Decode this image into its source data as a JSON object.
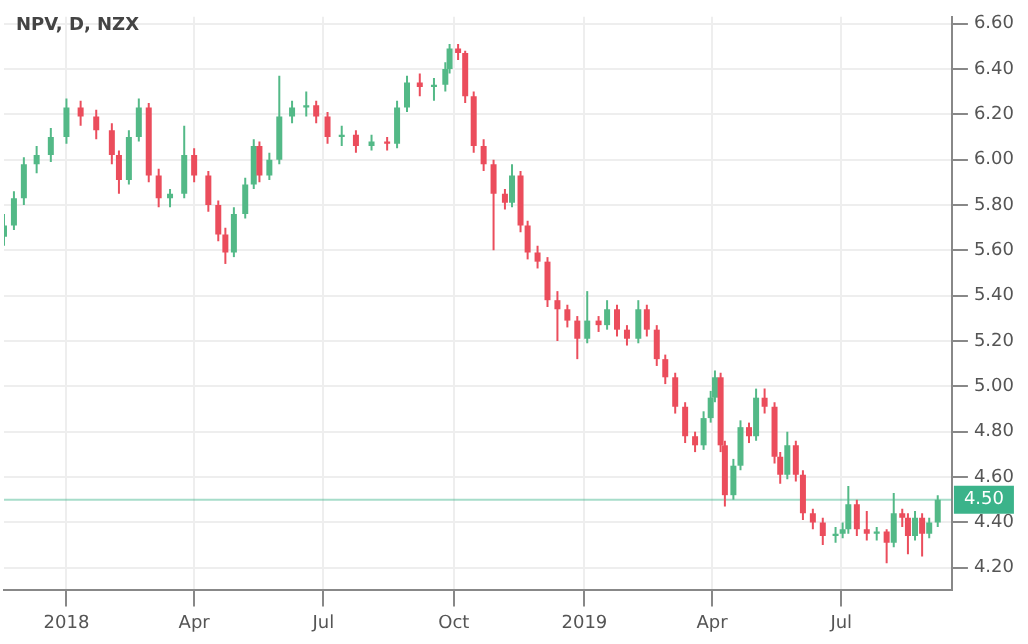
{
  "chart_data": {
    "type": "candlestick",
    "title": "NPV, D, NZX",
    "x": [
      "2017-11-18",
      "2017-11-25",
      "2017-12-02",
      "2017-12-11",
      "2017-12-21",
      "2018-01-01",
      "2018-01-11",
      "2018-01-22",
      "2018-02-02",
      "2018-02-07",
      "2018-02-14",
      "2018-02-21",
      "2018-02-28",
      "2018-03-07",
      "2018-03-15",
      "2018-03-25",
      "2018-04-01",
      "2018-04-11",
      "2018-04-18",
      "2018-04-23",
      "2018-04-29",
      "2018-05-07",
      "2018-05-13",
      "2018-05-17",
      "2018-05-24",
      "2018-05-31",
      "2018-06-09",
      "2018-06-19",
      "2018-06-26",
      "2018-07-04",
      "2018-07-14",
      "2018-07-24",
      "2018-08-04",
      "2018-08-15",
      "2018-08-22",
      "2018-08-29",
      "2018-09-07",
      "2018-09-17",
      "2018-09-25",
      "2018-09-28",
      "2018-10-04",
      "2018-10-09",
      "2018-10-15",
      "2018-10-22",
      "2018-10-29",
      "2018-11-06",
      "2018-11-11",
      "2018-11-17",
      "2018-11-22",
      "2018-11-29",
      "2018-12-06",
      "2018-12-13",
      "2018-12-20",
      "2018-12-27",
      "2019-01-03",
      "2019-01-11",
      "2019-01-17",
      "2019-01-24",
      "2019-01-31",
      "2019-02-08",
      "2019-02-14",
      "2019-02-21",
      "2019-02-27",
      "2019-03-06",
      "2019-03-13",
      "2019-03-20",
      "2019-03-26",
      "2019-03-31",
      "2019-04-03",
      "2019-04-07",
      "2019-04-10",
      "2019-04-16",
      "2019-04-21",
      "2019-04-27",
      "2019-05-02",
      "2019-05-08",
      "2019-05-15",
      "2019-05-19",
      "2019-05-24",
      "2019-05-30",
      "2019-06-04",
      "2019-06-11",
      "2019-06-18",
      "2019-06-27",
      "2019-07-02",
      "2019-07-06",
      "2019-07-12",
      "2019-07-19",
      "2019-07-26",
      "2019-08-02",
      "2019-08-07",
      "2019-08-13",
      "2019-08-17",
      "2019-08-22",
      "2019-08-27",
      "2019-09-01",
      "2019-09-07"
    ],
    "ohlc": [
      [
        5.66,
        5.76,
        5.62,
        5.71
      ],
      [
        5.71,
        5.86,
        5.69,
        5.83
      ],
      [
        5.83,
        6.01,
        5.8,
        5.98
      ],
      [
        5.98,
        6.06,
        5.94,
        6.02
      ],
      [
        6.02,
        6.14,
        5.99,
        6.1
      ],
      [
        6.1,
        6.27,
        6.07,
        6.23
      ],
      [
        6.23,
        6.26,
        6.15,
        6.19
      ],
      [
        6.19,
        6.22,
        6.09,
        6.13
      ],
      [
        6.13,
        6.16,
        5.98,
        6.02
      ],
      [
        6.02,
        6.04,
        5.85,
        5.91
      ],
      [
        5.91,
        6.13,
        5.89,
        6.1
      ],
      [
        6.1,
        6.27,
        6.08,
        6.23
      ],
      [
        6.23,
        6.25,
        5.9,
        5.93
      ],
      [
        5.93,
        5.96,
        5.79,
        5.83
      ],
      [
        5.83,
        5.87,
        5.79,
        5.85
      ],
      [
        5.85,
        6.15,
        5.83,
        6.02
      ],
      [
        6.02,
        6.05,
        5.9,
        5.93
      ],
      [
        5.93,
        5.95,
        5.77,
        5.8
      ],
      [
        5.8,
        5.82,
        5.64,
        5.67
      ],
      [
        5.67,
        5.7,
        5.54,
        5.59
      ],
      [
        5.59,
        5.79,
        5.57,
        5.76
      ],
      [
        5.76,
        5.92,
        5.74,
        5.89
      ],
      [
        5.89,
        6.09,
        5.87,
        6.06
      ],
      [
        6.06,
        6.08,
        5.9,
        5.93
      ],
      [
        5.93,
        6.03,
        5.91,
        6.0
      ],
      [
        6.0,
        6.37,
        5.98,
        6.19
      ],
      [
        6.19,
        6.26,
        6.16,
        6.23
      ],
      [
        6.23,
        6.3,
        6.19,
        6.24
      ],
      [
        6.24,
        6.26,
        6.16,
        6.19
      ],
      [
        6.19,
        6.21,
        6.07,
        6.1
      ],
      [
        6.1,
        6.15,
        6.06,
        6.11
      ],
      [
        6.11,
        6.13,
        6.03,
        6.06
      ],
      [
        6.06,
        6.11,
        6.04,
        6.08
      ],
      [
        6.08,
        6.1,
        6.04,
        6.07
      ],
      [
        6.07,
        6.26,
        6.05,
        6.23
      ],
      [
        6.23,
        6.37,
        6.21,
        6.34
      ],
      [
        6.34,
        6.38,
        6.28,
        6.32
      ],
      [
        6.32,
        6.36,
        6.26,
        6.33
      ],
      [
        6.33,
        6.43,
        6.3,
        6.4
      ],
      [
        6.4,
        6.51,
        6.38,
        6.49
      ],
      [
        6.49,
        6.51,
        6.44,
        6.47
      ],
      [
        6.47,
        6.48,
        6.25,
        6.28
      ],
      [
        6.28,
        6.3,
        6.03,
        6.06
      ],
      [
        6.06,
        6.09,
        5.95,
        5.98
      ],
      [
        5.98,
        6.0,
        5.6,
        5.85
      ],
      [
        5.85,
        5.87,
        5.78,
        5.81
      ],
      [
        5.81,
        5.98,
        5.79,
        5.93
      ],
      [
        5.93,
        5.95,
        5.68,
        5.71
      ],
      [
        5.71,
        5.73,
        5.56,
        5.59
      ],
      [
        5.59,
        5.62,
        5.52,
        5.55
      ],
      [
        5.55,
        5.57,
        5.35,
        5.38
      ],
      [
        5.38,
        5.42,
        5.2,
        5.34
      ],
      [
        5.34,
        5.36,
        5.26,
        5.29
      ],
      [
        5.29,
        5.31,
        5.12,
        5.21
      ],
      [
        5.21,
        5.42,
        5.19,
        5.29
      ],
      [
        5.29,
        5.31,
        5.24,
        5.27
      ],
      [
        5.27,
        5.38,
        5.25,
        5.34
      ],
      [
        5.34,
        5.36,
        5.22,
        5.25
      ],
      [
        5.25,
        5.27,
        5.18,
        5.21
      ],
      [
        5.21,
        5.38,
        5.19,
        5.34
      ],
      [
        5.34,
        5.36,
        5.22,
        5.25
      ],
      [
        5.25,
        5.27,
        5.09,
        5.12
      ],
      [
        5.12,
        5.14,
        5.01,
        5.04
      ],
      [
        5.04,
        5.06,
        4.88,
        4.91
      ],
      [
        4.91,
        4.93,
        4.75,
        4.78
      ],
      [
        4.78,
        4.8,
        4.71,
        4.74
      ],
      [
        4.74,
        4.89,
        4.72,
        4.86
      ],
      [
        4.86,
        4.98,
        4.84,
        4.95
      ],
      [
        4.95,
        5.07,
        4.93,
        5.04
      ],
      [
        5.04,
        5.06,
        4.71,
        4.74
      ],
      [
        4.74,
        4.76,
        4.47,
        4.52
      ],
      [
        4.52,
        4.68,
        4.5,
        4.65
      ],
      [
        4.65,
        4.85,
        4.63,
        4.82
      ],
      [
        4.82,
        4.84,
        4.75,
        4.78
      ],
      [
        4.78,
        4.99,
        4.76,
        4.95
      ],
      [
        4.95,
        4.99,
        4.88,
        4.91
      ],
      [
        4.91,
        4.93,
        4.66,
        4.69
      ],
      [
        4.69,
        4.71,
        4.57,
        4.61
      ],
      [
        4.61,
        4.8,
        4.59,
        4.74
      ],
      [
        4.74,
        4.76,
        4.58,
        4.61
      ],
      [
        4.61,
        4.63,
        4.41,
        4.44
      ],
      [
        4.44,
        4.46,
        4.37,
        4.4
      ],
      [
        4.4,
        4.42,
        4.3,
        4.34
      ],
      [
        4.34,
        4.38,
        4.31,
        4.35
      ],
      [
        4.35,
        4.4,
        4.33,
        4.37
      ],
      [
        4.37,
        4.56,
        4.35,
        4.48
      ],
      [
        4.48,
        4.5,
        4.34,
        4.37
      ],
      [
        4.37,
        4.45,
        4.32,
        4.35
      ],
      [
        4.35,
        4.38,
        4.32,
        4.36
      ],
      [
        4.36,
        4.37,
        4.22,
        4.31
      ],
      [
        4.31,
        4.53,
        4.29,
        4.44
      ],
      [
        4.44,
        4.46,
        4.38,
        4.42
      ],
      [
        4.42,
        4.44,
        4.26,
        4.34
      ],
      [
        4.34,
        4.45,
        4.32,
        4.42
      ],
      [
        4.42,
        4.44,
        4.25,
        4.35
      ],
      [
        4.35,
        4.42,
        4.33,
        4.4
      ],
      [
        4.4,
        4.52,
        4.38,
        4.5
      ]
    ],
    "colors": [
      "#53b987",
      "#53b987",
      "#53b987",
      "#53b987",
      "#53b987",
      "#53b987",
      "#eb4d5c",
      "#eb4d5c",
      "#eb4d5c",
      "#eb4d5c",
      "#53b987",
      "#53b987",
      "#eb4d5c",
      "#eb4d5c",
      "#53b987",
      "#53b987",
      "#eb4d5c",
      "#eb4d5c",
      "#eb4d5c",
      "#eb4d5c",
      "#53b987",
      "#53b987",
      "#53b987",
      "#eb4d5c",
      "#53b987",
      "#53b987",
      "#53b987",
      "#53b987",
      "#eb4d5c",
      "#eb4d5c",
      "#53b987",
      "#eb4d5c",
      "#53b987",
      "#eb4d5c",
      "#53b987",
      "#53b987",
      "#eb4d5c",
      "#53b987",
      "#53b987",
      "#53b987",
      "#eb4d5c",
      "#eb4d5c",
      "#eb4d5c",
      "#eb4d5c",
      "#eb4d5c",
      "#eb4d5c",
      "#53b987",
      "#eb4d5c",
      "#eb4d5c",
      "#eb4d5c",
      "#eb4d5c",
      "#eb4d5c",
      "#eb4d5c",
      "#eb4d5c",
      "#53b987",
      "#eb4d5c",
      "#53b987",
      "#eb4d5c",
      "#eb4d5c",
      "#53b987",
      "#eb4d5c",
      "#eb4d5c",
      "#eb4d5c",
      "#eb4d5c",
      "#eb4d5c",
      "#eb4d5c",
      "#53b987",
      "#53b987",
      "#53b987",
      "#eb4d5c",
      "#eb4d5c",
      "#53b987",
      "#53b987",
      "#eb4d5c",
      "#53b987",
      "#eb4d5c",
      "#eb4d5c",
      "#eb4d5c",
      "#53b987",
      "#eb4d5c",
      "#eb4d5c",
      "#eb4d5c",
      "#eb4d5c",
      "#53b987",
      "#53b987",
      "#53b987",
      "#eb4d5c",
      "#eb4d5c",
      "#53b987",
      "#eb4d5c",
      "#53b987",
      "#eb4d5c",
      "#eb4d5c",
      "#53b987",
      "#eb4d5c",
      "#53b987",
      "#53b987"
    ],
    "xlim": [
      "2017-11-18",
      "2019-09-17"
    ],
    "xticks": [
      {
        "value": "2018-01-01",
        "label": "2018"
      },
      {
        "value": "2018-04-01",
        "label": "Apr"
      },
      {
        "value": "2018-07-01",
        "label": "Jul"
      },
      {
        "value": "2018-10-01",
        "label": "Oct"
      },
      {
        "value": "2019-01-01",
        "label": "2019"
      },
      {
        "value": "2019-04-01",
        "label": "Apr"
      },
      {
        "value": "2019-07-01",
        "label": "Jul"
      }
    ],
    "ylim": [
      4.1,
      6.63
    ],
    "yticks": [
      {
        "value": 4.2,
        "label": "4.20"
      },
      {
        "value": 4.4,
        "label": "4.40"
      },
      {
        "value": 4.6,
        "label": "4.60"
      },
      {
        "value": 4.8,
        "label": "4.80"
      },
      {
        "value": 5.0,
        "label": "5.00"
      },
      {
        "value": 5.2,
        "label": "5.20"
      },
      {
        "value": 5.4,
        "label": "5.40"
      },
      {
        "value": 5.6,
        "label": "5.60"
      },
      {
        "value": 5.8,
        "label": "5.80"
      },
      {
        "value": 6.0,
        "label": "6.00"
      },
      {
        "value": 6.2,
        "label": "6.20"
      },
      {
        "value": 6.4,
        "label": "6.40"
      },
      {
        "value": 6.6,
        "label": "6.60"
      }
    ],
    "ref_lines": [
      {
        "axis": "y",
        "value": 4.5,
        "label": "4.50",
        "color": "#3bb38a"
      }
    ],
    "grid": true
  }
}
